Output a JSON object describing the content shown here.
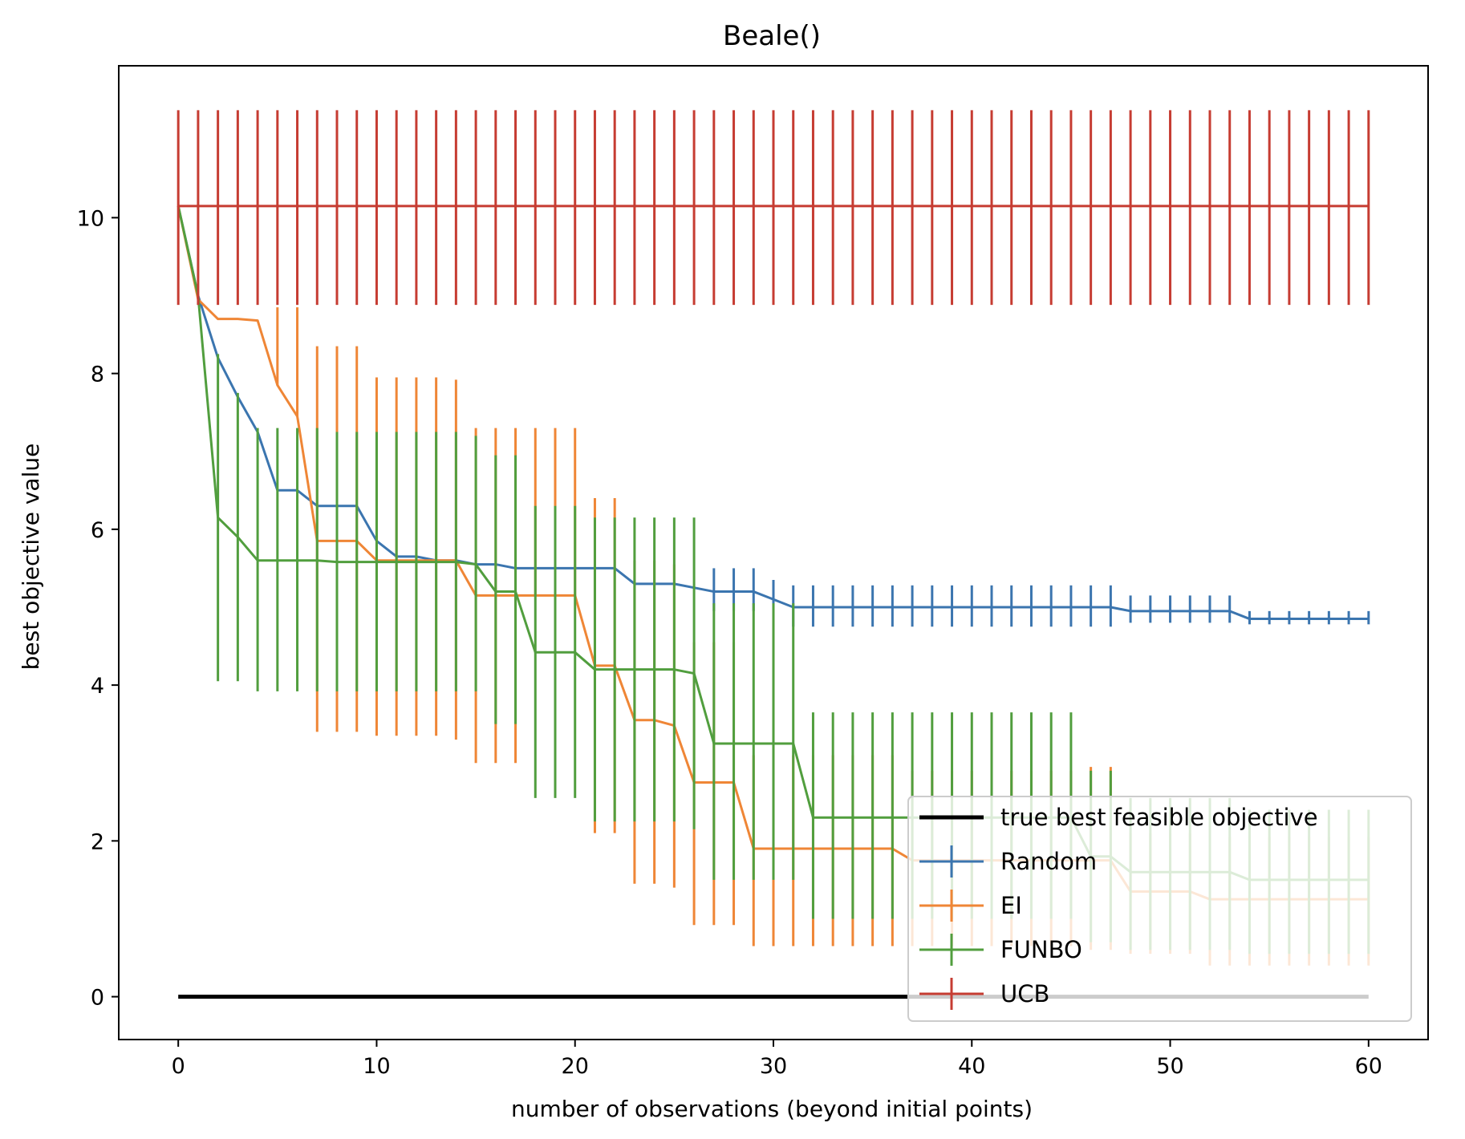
{
  "chart_data": {
    "type": "line",
    "title": "Beale()",
    "xlabel": "number of observations (beyond initial points)",
    "ylabel": "best objective value",
    "xlim": [
      -3,
      63
    ],
    "ylim": [
      -0.55,
      11.95
    ],
    "xticks": [
      0,
      10,
      20,
      30,
      40,
      50,
      60
    ],
    "yticks": [
      0,
      2,
      4,
      6,
      8,
      10
    ],
    "grid": false,
    "legend_position": "lower-right",
    "reference_line": {
      "name": "true best feasible objective",
      "value": 0,
      "color": "#000000"
    },
    "series": [
      {
        "name": "Random",
        "color": "#3b75af",
        "mean": [
          10.15,
          9.0,
          8.2,
          7.7,
          7.25,
          6.5,
          6.5,
          6.3,
          6.3,
          6.3,
          5.85,
          5.65,
          5.65,
          5.6,
          5.6,
          5.55,
          5.55,
          5.5,
          5.5,
          5.5,
          5.5,
          5.5,
          5.5,
          5.3,
          5.3,
          5.3,
          5.25,
          5.2,
          5.2,
          5.2,
          5.1,
          5.0,
          5.0,
          5.0,
          5.0,
          5.0,
          5.0,
          5.0,
          5.0,
          5.0,
          5.0,
          5.0,
          5.0,
          5.0,
          5.0,
          5.0,
          5.0,
          5.0,
          4.95,
          4.95,
          4.95,
          4.95,
          4.95,
          4.95,
          4.85,
          4.85,
          4.85,
          4.85,
          4.85,
          4.85,
          4.85
        ],
        "lower": [
          10.15,
          9.0,
          8.2,
          7.7,
          7.25,
          6.5,
          6.5,
          6.3,
          6.3,
          6.3,
          5.85,
          5.65,
          5.65,
          5.6,
          5.6,
          5.55,
          5.55,
          5.5,
          5.5,
          5.5,
          5.5,
          5.5,
          5.5,
          5.3,
          5.3,
          5.3,
          5.25,
          4.95,
          4.95,
          4.95,
          4.85,
          4.75,
          4.75,
          4.75,
          4.75,
          4.75,
          4.75,
          4.75,
          4.75,
          4.75,
          4.75,
          4.75,
          4.75,
          4.75,
          4.75,
          4.75,
          4.75,
          4.75,
          4.8,
          4.8,
          4.8,
          4.8,
          4.8,
          4.8,
          4.78,
          4.78,
          4.78,
          4.78,
          4.78,
          4.78,
          4.78
        ],
        "upper": [
          10.15,
          9.0,
          8.2,
          7.7,
          7.25,
          6.5,
          6.5,
          6.3,
          6.3,
          6.3,
          5.85,
          5.65,
          5.65,
          5.6,
          5.6,
          5.55,
          5.55,
          5.5,
          5.5,
          5.5,
          5.5,
          5.5,
          5.5,
          5.3,
          5.3,
          5.3,
          5.25,
          5.5,
          5.5,
          5.5,
          5.35,
          5.28,
          5.28,
          5.28,
          5.28,
          5.28,
          5.28,
          5.28,
          5.28,
          5.28,
          5.28,
          5.28,
          5.28,
          5.28,
          5.28,
          5.28,
          5.28,
          5.28,
          5.15,
          5.15,
          5.15,
          5.15,
          5.15,
          5.15,
          4.95,
          4.95,
          4.95,
          4.95,
          4.95,
          4.95,
          4.95
        ]
      },
      {
        "name": "EI",
        "color": "#ef8636",
        "mean": [
          10.15,
          8.95,
          8.7,
          8.7,
          8.68,
          7.85,
          7.45,
          5.85,
          5.85,
          5.85,
          5.6,
          5.6,
          5.6,
          5.6,
          5.6,
          5.15,
          5.15,
          5.15,
          5.15,
          5.15,
          5.15,
          4.25,
          4.25,
          3.55,
          3.55,
          3.48,
          2.75,
          2.75,
          2.75,
          1.9,
          1.9,
          1.9,
          1.9,
          1.9,
          1.9,
          1.9,
          1.9,
          1.75,
          1.75,
          1.75,
          1.75,
          1.75,
          1.75,
          1.75,
          1.75,
          1.75,
          1.75,
          1.75,
          1.35,
          1.35,
          1.35,
          1.35,
          1.25,
          1.25,
          1.25,
          1.25,
          1.25,
          1.25,
          1.25,
          1.25,
          1.25
        ],
        "lower": [
          10.15,
          8.95,
          8.7,
          8.7,
          8.68,
          7.85,
          7.45,
          3.4,
          3.4,
          3.4,
          3.35,
          3.35,
          3.35,
          3.35,
          3.3,
          3.0,
          3.0,
          3.0,
          5.15,
          5.15,
          5.15,
          2.1,
          2.1,
          1.45,
          1.45,
          1.4,
          0.92,
          0.92,
          0.92,
          0.65,
          0.65,
          0.65,
          0.65,
          0.65,
          0.65,
          0.65,
          0.65,
          0.65,
          0.65,
          0.65,
          0.65,
          0.65,
          0.65,
          0.65,
          0.65,
          0.65,
          0.6,
          0.6,
          0.55,
          0.55,
          0.55,
          0.55,
          0.4,
          0.4,
          0.4,
          0.4,
          0.4,
          0.4,
          0.4,
          0.4,
          0.4
        ],
        "upper": [
          10.15,
          8.95,
          8.7,
          8.7,
          8.68,
          8.85,
          8.85,
          8.35,
          8.35,
          8.35,
          7.95,
          7.95,
          7.95,
          7.95,
          7.92,
          7.3,
          7.3,
          7.3,
          7.3,
          7.3,
          7.3,
          6.4,
          6.4,
          5.6,
          5.6,
          5.55,
          4.55,
          4.55,
          4.55,
          3.1,
          3.1,
          3.1,
          3.1,
          3.1,
          3.1,
          3.1,
          3.1,
          2.9,
          2.9,
          2.9,
          2.9,
          2.9,
          2.9,
          2.9,
          2.9,
          2.9,
          2.95,
          2.95,
          2.1,
          2.1,
          2.1,
          2.1,
          2.05,
          2.05,
          2.05,
          2.05,
          2.05,
          2.05,
          2.05,
          2.05,
          2.05
        ]
      },
      {
        "name": "FUNBO",
        "color": "#519e3e",
        "mean": [
          10.15,
          9.0,
          6.15,
          5.9,
          5.6,
          5.6,
          5.6,
          5.6,
          5.58,
          5.58,
          5.58,
          5.58,
          5.58,
          5.58,
          5.58,
          5.55,
          5.2,
          5.2,
          4.42,
          4.42,
          4.42,
          4.2,
          4.2,
          4.2,
          4.2,
          4.2,
          4.15,
          3.25,
          3.25,
          3.25,
          3.25,
          3.25,
          2.3,
          2.3,
          2.3,
          2.3,
          2.3,
          2.3,
          2.3,
          2.3,
          2.3,
          2.3,
          2.3,
          2.3,
          2.3,
          2.3,
          1.8,
          1.8,
          1.6,
          1.6,
          1.6,
          1.6,
          1.6,
          1.6,
          1.5,
          1.5,
          1.5,
          1.5,
          1.5,
          1.5,
          1.5
        ],
        "lower": [
          10.15,
          9.0,
          4.05,
          4.05,
          3.92,
          3.92,
          3.92,
          3.92,
          3.92,
          3.92,
          3.92,
          3.92,
          3.92,
          3.92,
          3.92,
          3.92,
          3.5,
          3.5,
          2.55,
          2.55,
          2.55,
          2.25,
          2.25,
          2.25,
          2.25,
          2.25,
          2.15,
          1.5,
          1.5,
          1.5,
          1.5,
          1.5,
          1.0,
          1.0,
          1.0,
          1.0,
          1.0,
          1.0,
          1.0,
          1.0,
          1.0,
          1.0,
          1.0,
          1.0,
          1.0,
          1.0,
          0.7,
          0.7,
          0.6,
          0.6,
          0.6,
          0.6,
          0.6,
          0.6,
          0.55,
          0.55,
          0.55,
          0.55,
          0.55,
          0.55,
          0.55
        ],
        "upper": [
          10.15,
          9.0,
          8.25,
          7.75,
          7.3,
          7.3,
          7.3,
          7.3,
          7.25,
          7.25,
          7.25,
          7.25,
          7.25,
          7.25,
          7.25,
          7.2,
          6.95,
          6.95,
          6.3,
          6.3,
          6.3,
          6.15,
          6.15,
          6.15,
          6.15,
          6.15,
          6.15,
          5.05,
          5.05,
          5.05,
          5.05,
          5.05,
          3.65,
          3.65,
          3.65,
          3.65,
          3.65,
          3.65,
          3.65,
          3.65,
          3.65,
          3.65,
          3.65,
          3.65,
          3.65,
          3.65,
          2.9,
          2.9,
          2.55,
          2.55,
          2.55,
          2.55,
          2.55,
          2.55,
          2.4,
          2.4,
          2.4,
          2.4,
          2.4,
          2.4,
          2.4
        ]
      },
      {
        "name": "UCB",
        "color": "#c63c32",
        "mean": [
          10.15,
          10.15,
          10.15,
          10.15,
          10.15,
          10.15,
          10.15,
          10.15,
          10.15,
          10.15,
          10.15,
          10.15,
          10.15,
          10.15,
          10.15,
          10.15,
          10.15,
          10.15,
          10.15,
          10.15,
          10.15,
          10.15,
          10.15,
          10.15,
          10.15,
          10.15,
          10.15,
          10.15,
          10.15,
          10.15,
          10.15,
          10.15,
          10.15,
          10.15,
          10.15,
          10.15,
          10.15,
          10.15,
          10.15,
          10.15,
          10.15,
          10.15,
          10.15,
          10.15,
          10.15,
          10.15,
          10.15,
          10.15,
          10.15,
          10.15,
          10.15,
          10.15,
          10.15,
          10.15,
          10.15,
          10.15,
          10.15,
          10.15,
          10.15,
          10.15,
          10.15
        ],
        "lower": [
          8.88,
          8.88,
          8.88,
          8.88,
          8.88,
          8.88,
          8.88,
          8.88,
          8.88,
          8.88,
          8.88,
          8.88,
          8.88,
          8.88,
          8.88,
          8.88,
          8.88,
          8.88,
          8.88,
          8.88,
          8.88,
          8.88,
          8.88,
          8.88,
          8.88,
          8.88,
          8.88,
          8.88,
          8.88,
          8.88,
          8.88,
          8.88,
          8.88,
          8.88,
          8.88,
          8.88,
          8.88,
          8.88,
          8.88,
          8.88,
          8.88,
          8.88,
          8.88,
          8.88,
          8.88,
          8.88,
          8.88,
          8.88,
          8.88,
          8.88,
          8.88,
          8.88,
          8.88,
          8.88,
          8.88,
          8.88,
          8.88,
          8.88,
          8.88,
          8.88,
          8.88
        ],
        "upper": [
          11.38,
          11.38,
          11.38,
          11.38,
          11.38,
          11.38,
          11.38,
          11.38,
          11.38,
          11.38,
          11.38,
          11.38,
          11.38,
          11.38,
          11.38,
          11.38,
          11.38,
          11.38,
          11.38,
          11.38,
          11.38,
          11.38,
          11.38,
          11.38,
          11.38,
          11.38,
          11.38,
          11.38,
          11.38,
          11.38,
          11.38,
          11.38,
          11.38,
          11.38,
          11.38,
          11.38,
          11.38,
          11.38,
          11.38,
          11.38,
          11.38,
          11.38,
          11.38,
          11.38,
          11.38,
          11.38,
          11.38,
          11.38,
          11.38,
          11.38,
          11.38,
          11.38,
          11.38,
          11.38,
          11.38,
          11.38,
          11.38,
          11.38,
          11.38,
          11.38,
          11.38
        ]
      }
    ]
  }
}
